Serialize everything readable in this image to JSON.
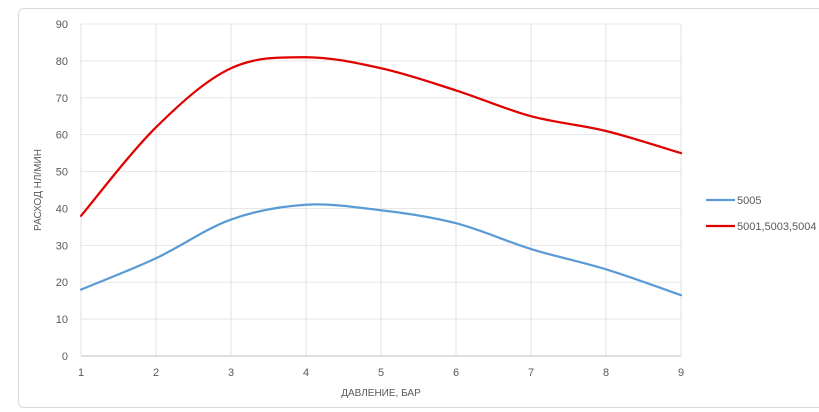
{
  "chart_data": {
    "type": "line",
    "title": "",
    "xlabel": "ДАВЛЕНИЕ, БАР",
    "ylabel": "РАСХОД НЛ/МИН",
    "x": [
      1,
      2,
      3,
      4,
      5,
      6,
      7,
      8,
      9
    ],
    "xlim": [
      1,
      9
    ],
    "ylim": [
      0,
      90
    ],
    "yticks": [
      0,
      10,
      20,
      30,
      40,
      50,
      60,
      70,
      80,
      90
    ],
    "grid": true,
    "legend_position": "right",
    "series": [
      {
        "name": "5005",
        "color": "#5b9bd5",
        "values": [
          18,
          26.5,
          37,
          41,
          39.5,
          36,
          29,
          23.5,
          16.5
        ]
      },
      {
        "name": "5001,5003,5004",
        "color": "#e00000",
        "values": [
          38,
          62,
          78,
          81,
          78,
          72,
          65,
          61,
          55
        ]
      }
    ]
  }
}
